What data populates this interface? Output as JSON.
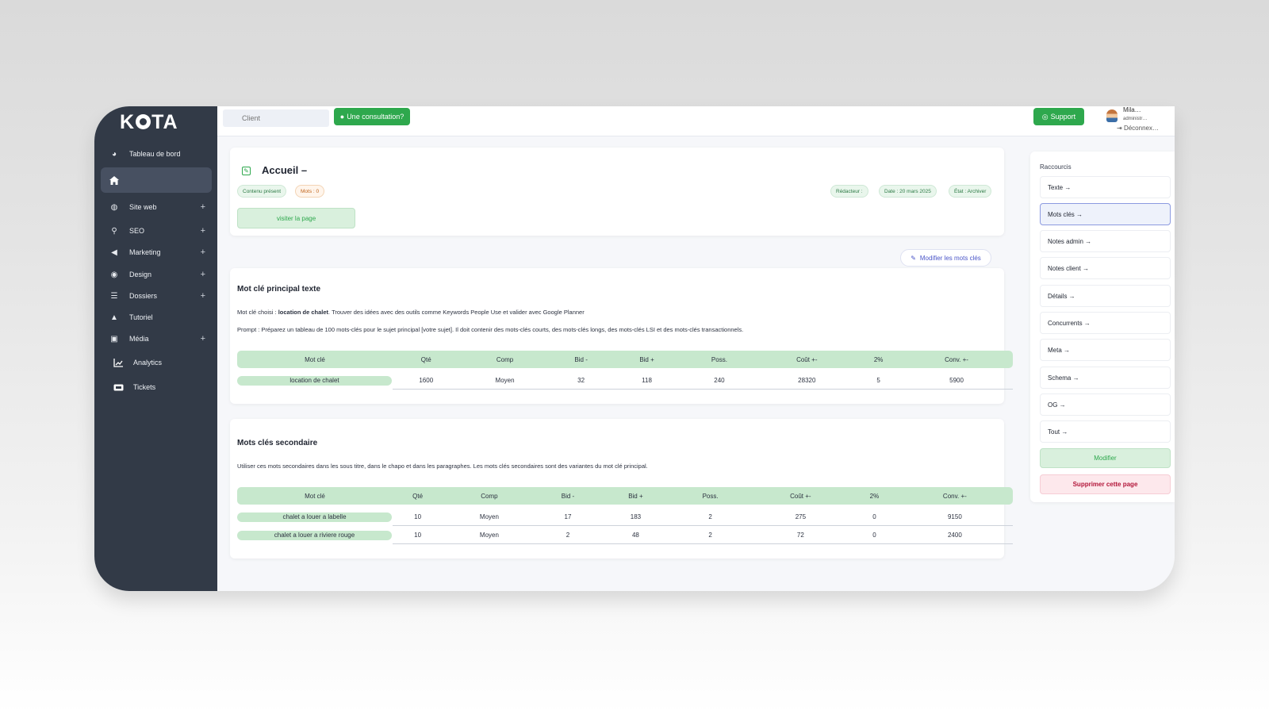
{
  "app": {
    "logo": "KOTA"
  },
  "sidebar": {
    "items": [
      {
        "label": "Tableau de bord",
        "icon": "dashboard-icon"
      },
      {
        "label": "",
        "icon": "home-icon"
      },
      {
        "label": "Site web",
        "icon": "globe-icon",
        "expand": "+"
      },
      {
        "label": "SEO",
        "icon": "search-icon",
        "expand": "+"
      },
      {
        "label": "Marketing",
        "icon": "megaphone-icon",
        "expand": "+"
      },
      {
        "label": "Design",
        "icon": "palette-icon",
        "expand": "+"
      },
      {
        "label": "Dossiers",
        "icon": "folder-tree-icon",
        "expand": "+"
      },
      {
        "label": "Tutoriel",
        "icon": "graduation-cap-icon"
      },
      {
        "label": "Média",
        "icon": "images-icon",
        "expand": "+"
      },
      {
        "label": "Analytics",
        "icon": "chart-line-icon"
      },
      {
        "label": "Tickets",
        "icon": "ticket-icon"
      }
    ]
  },
  "topbar": {
    "client_placeholder": "Client",
    "consultation_label": "Une consultation?",
    "support_label": "Support",
    "user_name": "Mila…",
    "user_role": "administr…",
    "logout_label": "Déconnex…"
  },
  "page": {
    "title": "Accueil –",
    "badges_left": [
      "Contenu présent",
      "Mots : 0"
    ],
    "badges_right": [
      "Rédacteur :",
      "Date : 20 mars 2025",
      "État : Archiver"
    ],
    "visit_label": "visiter la page",
    "modify_keywords_label": "Modifier les mots clés"
  },
  "main_keyword": {
    "title": "Mot clé principal texte",
    "choice_prefix": "Mot clé choisi : ",
    "choice_value": "location de chalet",
    "choice_suffix": ". Trouver des idées avec des outils comme Keywords People Use et valider avec Google Planner",
    "prompt": "Prompt : Préparez un tableau de 100 mots-clés pour le sujet principal [votre sujet]. Il doit contenir des mots-clés courts, des mots-clés longs, des mots-clés LSI et des mots-clés transactionnels.",
    "columns": [
      "Mot clé",
      "Qté",
      "Comp",
      "Bid -",
      "Bid +",
      "Poss.",
      "Coût +-",
      "2%",
      "Conv. +-"
    ],
    "rows": [
      [
        "location de chalet",
        "1600",
        "Moyen",
        "32",
        "118",
        "240",
        "28320",
        "5",
        "5900"
      ]
    ]
  },
  "secondary_keywords": {
    "title": "Mots clés secondaire",
    "description": "Utiliser ces mots secondaires dans les sous titre, dans le chapo et dans les paragraphes. Les mots clés secondaires sont des variantes du mot clé principal.",
    "columns": [
      "Mot clé",
      "Qté",
      "Comp",
      "Bid -",
      "Bid +",
      "Poss.",
      "Coût +-",
      "2%",
      "Conv. +-"
    ],
    "rows": [
      [
        "chalet a louer a labelle",
        "10",
        "Moyen",
        "17",
        "183",
        "2",
        "275",
        "0",
        "9150"
      ],
      [
        "chalet a louer a riviere rouge",
        "10",
        "Moyen",
        "2",
        "48",
        "2",
        "72",
        "0",
        "2400"
      ]
    ]
  },
  "shortcuts": {
    "title": "Raccourcis",
    "items": [
      "Texte →",
      "Mots clés →",
      "Notes admin →",
      "Notes client →",
      "Détails →",
      "Concurrents →",
      "Meta →",
      "Schema →",
      "OG →",
      "Tout →"
    ],
    "active_index": 1,
    "modify_label": "Modifier",
    "delete_label": "Supprimer cette page"
  },
  "colors": {
    "sidebar_bg": "#323a47",
    "accent_green": "#2ea84d",
    "table_header": "#c7e8cd",
    "delete_red": "#b3163a"
  }
}
